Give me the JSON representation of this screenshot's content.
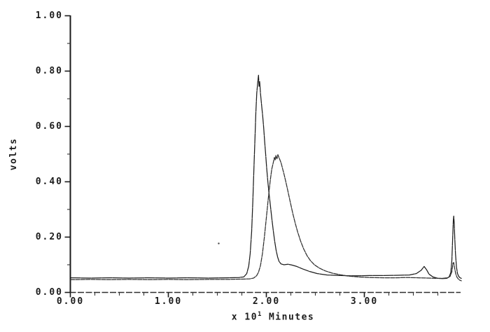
{
  "figure": {
    "x_axis_title_prefix": "x 10",
    "x_axis_title_exponent": "1",
    "x_axis_title_suffix": "Minutes"
  },
  "chart_data": {
    "type": "line",
    "title": "",
    "xlabel": "x 10^1 Minutes",
    "ylabel": "volts",
    "xlim": [
      0,
      4.0
    ],
    "ylim": [
      0,
      1.0
    ],
    "grid": false,
    "legend": "none",
    "x_major_ticks": [
      0,
      1,
      2,
      3
    ],
    "x_tick_labels": [
      "0.00",
      "1.00",
      "2.00",
      "3.00"
    ],
    "x_minor_tick_step": 0.25,
    "y_major_ticks": [
      0,
      0.2,
      0.4,
      0.6,
      0.8,
      1.0
    ],
    "y_tick_labels": [
      "0.00",
      "0.20",
      "0.40",
      "0.60",
      "0.80",
      "1.00"
    ],
    "y_minor_tick_step": 0.1,
    "axis_color": "#1a1a1a",
    "series": [
      {
        "name": "trace-sharp-peak",
        "color": "#1c1c1c",
        "peak_summary": "sharp peak 0.79 V at 1.92, shoulder ~0.10 V near 2.2, small bump 0.094 V at 3.61, sharp peak 0.28 V at 3.91",
        "points": [
          [
            0.0,
            0.053
          ],
          [
            0.2,
            0.052
          ],
          [
            0.4,
            0.053
          ],
          [
            0.6,
            0.052
          ],
          [
            0.8,
            0.053
          ],
          [
            1.0,
            0.052
          ],
          [
            1.2,
            0.053
          ],
          [
            1.4,
            0.052
          ],
          [
            1.6,
            0.053
          ],
          [
            1.72,
            0.054
          ],
          [
            1.77,
            0.056
          ],
          [
            1.8,
            0.068
          ],
          [
            1.82,
            0.095
          ],
          [
            1.835,
            0.14
          ],
          [
            1.85,
            0.22
          ],
          [
            1.862,
            0.33
          ],
          [
            1.874,
            0.46
          ],
          [
            1.884,
            0.56
          ],
          [
            1.893,
            0.65
          ],
          [
            1.902,
            0.72
          ],
          [
            1.912,
            0.76
          ],
          [
            1.92,
            0.785
          ],
          [
            1.926,
            0.745
          ],
          [
            1.932,
            0.762
          ],
          [
            1.94,
            0.72
          ],
          [
            1.952,
            0.675
          ],
          [
            1.962,
            0.64
          ],
          [
            1.973,
            0.595
          ],
          [
            1.983,
            0.545
          ],
          [
            1.993,
            0.5
          ],
          [
            2.003,
            0.452
          ],
          [
            2.013,
            0.41
          ],
          [
            2.025,
            0.365
          ],
          [
            2.04,
            0.318
          ],
          [
            2.055,
            0.27
          ],
          [
            2.07,
            0.225
          ],
          [
            2.085,
            0.185
          ],
          [
            2.1,
            0.152
          ],
          [
            2.115,
            0.128
          ],
          [
            2.13,
            0.112
          ],
          [
            2.15,
            0.103
          ],
          [
            2.18,
            0.1
          ],
          [
            2.22,
            0.102
          ],
          [
            2.26,
            0.099
          ],
          [
            2.31,
            0.094
          ],
          [
            2.37,
            0.085
          ],
          [
            2.44,
            0.076
          ],
          [
            2.52,
            0.068
          ],
          [
            2.62,
            0.063
          ],
          [
            2.75,
            0.061
          ],
          [
            2.9,
            0.06
          ],
          [
            3.05,
            0.061
          ],
          [
            3.2,
            0.061
          ],
          [
            3.35,
            0.062
          ],
          [
            3.46,
            0.063
          ],
          [
            3.53,
            0.068
          ],
          [
            3.58,
            0.08
          ],
          [
            3.61,
            0.094
          ],
          [
            3.635,
            0.082
          ],
          [
            3.66,
            0.066
          ],
          [
            3.7,
            0.056
          ],
          [
            3.75,
            0.051
          ],
          [
            3.8,
            0.05
          ],
          [
            3.84,
            0.051
          ],
          [
            3.865,
            0.056
          ],
          [
            3.882,
            0.072
          ],
          [
            3.893,
            0.115
          ],
          [
            3.901,
            0.19
          ],
          [
            3.908,
            0.26
          ],
          [
            3.912,
            0.276
          ],
          [
            3.917,
            0.25
          ],
          [
            3.923,
            0.195
          ],
          [
            3.93,
            0.14
          ],
          [
            3.94,
            0.092
          ],
          [
            3.951,
            0.068
          ],
          [
            3.963,
            0.058
          ],
          [
            3.976,
            0.053
          ],
          [
            3.99,
            0.051
          ]
        ]
      },
      {
        "name": "trace-broad-peak",
        "color": "#2e2e2e",
        "peak_summary": "broad peak 0.50 V at ~2.12, long tail, small peak 0.11 V at 3.91",
        "points": [
          [
            0.0,
            0.046
          ],
          [
            0.2,
            0.047
          ],
          [
            0.4,
            0.046
          ],
          [
            0.6,
            0.047
          ],
          [
            0.8,
            0.046
          ],
          [
            1.0,
            0.047
          ],
          [
            1.2,
            0.046
          ],
          [
            1.4,
            0.047
          ],
          [
            1.6,
            0.047
          ],
          [
            1.75,
            0.048
          ],
          [
            1.83,
            0.049
          ],
          [
            1.87,
            0.052
          ],
          [
            1.9,
            0.06
          ],
          [
            1.92,
            0.073
          ],
          [
            1.94,
            0.097
          ],
          [
            1.96,
            0.14
          ],
          [
            1.98,
            0.2
          ],
          [
            2.0,
            0.27
          ],
          [
            2.02,
            0.34
          ],
          [
            2.04,
            0.405
          ],
          [
            2.055,
            0.445
          ],
          [
            2.07,
            0.468
          ],
          [
            2.082,
            0.488
          ],
          [
            2.09,
            0.478
          ],
          [
            2.098,
            0.495
          ],
          [
            2.108,
            0.483
          ],
          [
            2.118,
            0.498
          ],
          [
            2.128,
            0.488
          ],
          [
            2.14,
            0.478
          ],
          [
            2.152,
            0.466
          ],
          [
            2.165,
            0.448
          ],
          [
            2.18,
            0.428
          ],
          [
            2.2,
            0.398
          ],
          [
            2.22,
            0.366
          ],
          [
            2.245,
            0.325
          ],
          [
            2.27,
            0.285
          ],
          [
            2.295,
            0.25
          ],
          [
            2.32,
            0.218
          ],
          [
            2.35,
            0.185
          ],
          [
            2.38,
            0.158
          ],
          [
            2.415,
            0.133
          ],
          [
            2.45,
            0.115
          ],
          [
            2.49,
            0.1
          ],
          [
            2.54,
            0.088
          ],
          [
            2.6,
            0.078
          ],
          [
            2.67,
            0.07
          ],
          [
            2.75,
            0.064
          ],
          [
            2.84,
            0.059
          ],
          [
            2.94,
            0.056
          ],
          [
            3.05,
            0.054
          ],
          [
            3.2,
            0.053
          ],
          [
            3.32,
            0.053
          ],
          [
            3.44,
            0.054
          ],
          [
            3.55,
            0.053
          ],
          [
            3.65,
            0.052
          ],
          [
            3.73,
            0.051
          ],
          [
            3.8,
            0.051
          ],
          [
            3.85,
            0.053
          ],
          [
            3.875,
            0.058
          ],
          [
            3.893,
            0.075
          ],
          [
            3.905,
            0.106
          ],
          [
            3.912,
            0.108
          ],
          [
            3.92,
            0.09
          ],
          [
            3.932,
            0.068
          ],
          [
            3.945,
            0.055
          ],
          [
            3.96,
            0.048
          ],
          [
            3.975,
            0.044
          ],
          [
            3.99,
            0.042
          ]
        ]
      }
    ],
    "annotations": [
      {
        "type": "speckle",
        "x": 1.514,
        "y": 0.177
      }
    ]
  }
}
